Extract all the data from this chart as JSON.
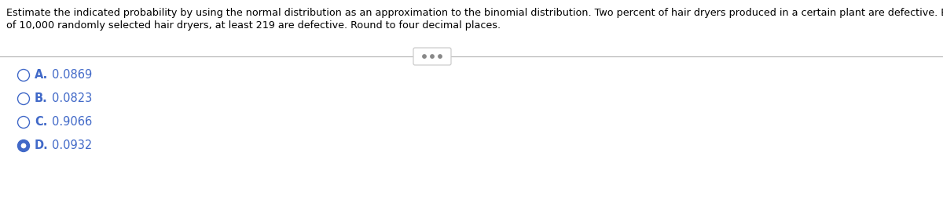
{
  "question_text_line1": "Estimate the indicated probability by using the normal distribution as an approximation to the binomial distribution. Two percent of hair dryers produced in a certain plant are defective. Estimate the probability that",
  "question_text_line2": "of 10,000 randomly selected hair dryers, at least 219 are defective. Round to four decimal places.",
  "options": [
    {
      "label": "A.",
      "value": "0.0869",
      "selected": false
    },
    {
      "label": "B.",
      "value": "0.0823",
      "selected": false
    },
    {
      "label": "C.",
      "value": "0.9066",
      "selected": false
    },
    {
      "label": "D.",
      "value": "0.0932",
      "selected": true
    }
  ],
  "bg_color": "#ffffff",
  "text_color": "#000000",
  "option_color": "#4169c8",
  "selected_fill": "#4169c8",
  "unselected_fill": "#ffffff",
  "divider_color": "#b0b0b0",
  "ellipsis_dot_color": "#888888",
  "ellipsis_box_edge": "#cccccc",
  "font_size_question": 9.2,
  "font_size_options": 10.5,
  "figwidth": 12.0,
  "figheight": 2.82,
  "dpi": 100
}
